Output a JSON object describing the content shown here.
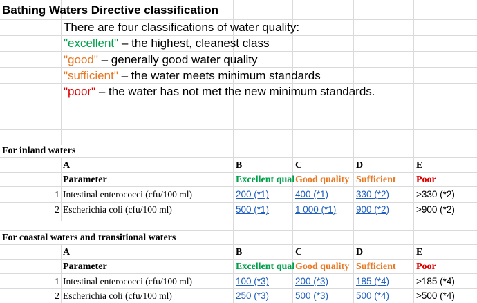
{
  "sheet": {
    "title": "Bathing Waters Directive classification",
    "intro": "There are four classifications of water quality:",
    "classes": [
      {
        "term": "\"excellent\"",
        "desc": " – the highest, cleanest class",
        "color": "#00a04a"
      },
      {
        "term": "\"good\"",
        "desc": " – generally good water quality",
        "color": "#e87722"
      },
      {
        "term": "\"sufficient\"",
        "desc": " – the water meets minimum standards",
        "color": "#e87722"
      },
      {
        "term": "\"poor\"",
        "desc": " – the water has not met the new minimum standards.",
        "color": "#e00000"
      }
    ]
  },
  "inland": {
    "section_title": "For inland waters",
    "col_letters": [
      "A",
      "B",
      "C",
      "D",
      "E"
    ],
    "headers": {
      "parameter": "Parameter",
      "excellent": "Excellent qual",
      "good": "Good quality",
      "sufficient": "Sufficient",
      "poor": "Poor"
    },
    "rows": [
      {
        "n": "1",
        "param": "Intestinal enterococci (cfu/100 ml)",
        "excellent": "200 (*1)",
        "good": "400 (*1)",
        "sufficient": "330 (*2)",
        "poor": ">330 (*2)"
      },
      {
        "n": "2",
        "param": "Escherichia coli (cfu/100 ml)",
        "excellent": "500 (*1)",
        "good": "1 000  (*1)",
        "sufficient": "900 (*2)",
        "poor": ">900 (*2)"
      }
    ]
  },
  "coastal": {
    "section_title": "For coastal waters and transitional waters",
    "col_letters": [
      "A",
      "B",
      "C",
      "D",
      "E"
    ],
    "headers": {
      "parameter": "Parameter",
      "excellent": "Excellent qual",
      "good": "Good quality",
      "sufficient": "Sufficient",
      "poor": "Poor"
    },
    "rows": [
      {
        "n": "1",
        "param": "Intestinal enterococci (cfu/100 ml)",
        "excellent": "100 (*3)",
        "good": "200 (*3)",
        "sufficient": "185 (*4)",
        "poor": ">185 (*4)"
      },
      {
        "n": "2",
        "param": "Escherichia coli (cfu/100 ml)",
        "excellent": "250 (*3)",
        "good": "500 (*3)",
        "sufficient": "500 (*4)",
        "poor": ">500 (*4)"
      }
    ]
  },
  "colors": {
    "excellent": "#00a04a",
    "good": "#e87722",
    "sufficient": "#e87722",
    "poor": "#e00000",
    "link": "#1f5fbf",
    "gridline": "#dadada"
  }
}
